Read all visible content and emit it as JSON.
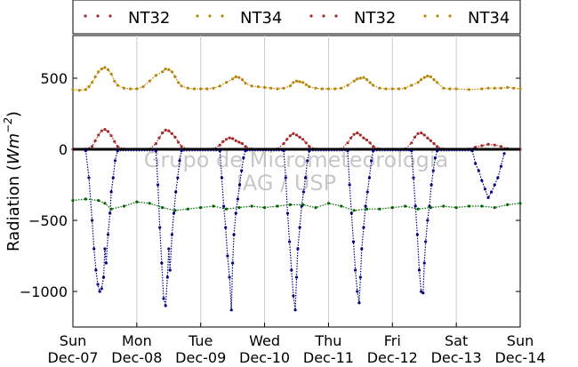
{
  "chart_data": {
    "type": "scatter",
    "ylabel_text": "Radiation (",
    "ylabel_unit_base": "Wm",
    "ylabel_unit_exp": "−2",
    "ylabel_close": ")",
    "ylim": [
      -1250,
      800
    ],
    "yticks": [
      500,
      0,
      -500,
      -1000
    ],
    "ytick_labels": [
      "500",
      "0",
      "−500",
      "−1000"
    ],
    "xlim": [
      0,
      7
    ],
    "xticks": [
      {
        "day": "Sun",
        "date": "Dec-07",
        "x": 0
      },
      {
        "day": "Mon",
        "date": "Dec-08",
        "x": 1
      },
      {
        "day": "Tue",
        "date": "Dec-09",
        "x": 2
      },
      {
        "day": "Wed",
        "date": "Dec-10",
        "x": 3
      },
      {
        "day": "Thu",
        "date": "Dec-11",
        "x": 4
      },
      {
        "day": "Fri",
        "date": "Dec-12",
        "x": 5
      },
      {
        "day": "Sat",
        "date": "Dec-13",
        "x": 6
      },
      {
        "day": "Sun",
        "date": "Dec-14",
        "x": 7
      }
    ],
    "grid": "vertical",
    "legend_position": "top",
    "legend": [
      {
        "name": "NT32",
        "color": "#a52a2a"
      },
      {
        "name": "NT34",
        "color": "#b8860b"
      },
      {
        "name": "NT32",
        "color": "#a52a2a"
      },
      {
        "name": "NT34",
        "color": "#b8860b"
      }
    ],
    "watermark": [
      "Grupo de Micrometeorologia",
      "IAG / USP"
    ],
    "series": [
      {
        "color": "#b8860b",
        "x": [
          0,
          0.1,
          0.2,
          0.25,
          0.3,
          0.35,
          0.4,
          0.45,
          0.5,
          0.55,
          0.6,
          0.65,
          0.7,
          0.8,
          0.9,
          1,
          1.1,
          1.2,
          1.3,
          1.4,
          1.45,
          1.5,
          1.55,
          1.6,
          1.65,
          1.7,
          1.8,
          1.9,
          2,
          2.1,
          2.2,
          2.3,
          2.4,
          2.5,
          2.55,
          2.6,
          2.65,
          2.7,
          2.8,
          2.9,
          3,
          3.1,
          3.2,
          3.3,
          3.4,
          3.45,
          3.5,
          3.55,
          3.6,
          3.65,
          3.7,
          3.8,
          3.9,
          4,
          4.1,
          4.2,
          4.3,
          4.4,
          4.45,
          4.5,
          4.55,
          4.6,
          4.65,
          4.7,
          4.8,
          4.9,
          5,
          5.1,
          5.2,
          5.3,
          5.4,
          5.45,
          5.5,
          5.55,
          5.6,
          5.65,
          5.7,
          5.8,
          5.9,
          6,
          6.2,
          6.4,
          6.5,
          6.6,
          6.7,
          6.8,
          6.9,
          7
        ],
        "y": [
          420,
          415,
          420,
          440,
          470,
          510,
          545,
          565,
          575,
          560,
          530,
          480,
          450,
          430,
          425,
          425,
          440,
          480,
          520,
          545,
          565,
          560,
          545,
          510,
          470,
          445,
          430,
          425,
          425,
          425,
          430,
          445,
          470,
          495,
          510,
          505,
          490,
          465,
          445,
          440,
          435,
          430,
          425,
          430,
          445,
          470,
          480,
          475,
          470,
          455,
          440,
          430,
          425,
          425,
          425,
          430,
          450,
          480,
          495,
          500,
          505,
          490,
          470,
          450,
          430,
          425,
          425,
          425,
          430,
          450,
          470,
          490,
          505,
          515,
          510,
          490,
          470,
          430,
          425,
          425,
          420,
          425,
          430,
          430,
          430,
          435,
          430,
          425
        ]
      },
      {
        "color": "#a52a2a",
        "x": [
          0,
          0.2,
          0.3,
          0.35,
          0.4,
          0.45,
          0.5,
          0.55,
          0.6,
          0.65,
          0.7,
          0.8,
          1,
          1.2,
          1.3,
          1.35,
          1.4,
          1.45,
          1.5,
          1.55,
          1.6,
          1.65,
          1.7,
          1.8,
          2,
          2.2,
          2.3,
          2.35,
          2.4,
          2.45,
          2.5,
          2.55,
          2.6,
          2.65,
          2.7,
          2.8,
          3,
          3.2,
          3.3,
          3.35,
          3.4,
          3.45,
          3.5,
          3.55,
          3.6,
          3.65,
          3.7,
          3.8,
          4,
          4.2,
          4.3,
          4.35,
          4.4,
          4.45,
          4.5,
          4.55,
          4.6,
          4.65,
          4.7,
          4.8,
          5,
          5.2,
          5.3,
          5.35,
          5.4,
          5.45,
          5.5,
          5.55,
          5.6,
          5.65,
          5.7,
          5.8,
          6,
          6.2,
          6.3,
          6.4,
          6.5,
          6.6,
          6.7,
          6.8,
          7
        ],
        "y": [
          0,
          2,
          20,
          60,
          100,
          130,
          140,
          125,
          95,
          55,
          20,
          2,
          0,
          2,
          40,
          80,
          115,
          135,
          130,
          110,
          85,
          50,
          20,
          2,
          0,
          2,
          30,
          55,
          70,
          80,
          75,
          60,
          50,
          40,
          20,
          2,
          0,
          2,
          40,
          70,
          95,
          110,
          100,
          85,
          70,
          45,
          20,
          2,
          0,
          2,
          45,
          80,
          105,
          115,
          100,
          80,
          65,
          45,
          20,
          2,
          0,
          2,
          45,
          85,
          110,
          115,
          100,
          80,
          60,
          40,
          20,
          2,
          0,
          2,
          15,
          25,
          35,
          30,
          20,
          5,
          0
        ]
      },
      {
        "color": "#000000",
        "x": [
          0,
          7
        ],
        "y": [
          0,
          0
        ]
      },
      {
        "color": "#000080",
        "x": [
          0.2,
          0.25,
          0.3,
          0.33,
          0.36,
          0.39,
          0.42,
          0.45,
          0.48,
          0.5,
          0.52,
          0.55,
          0.58,
          0.6,
          0.63,
          0.66,
          0.7,
          1.3,
          1.33,
          1.36,
          1.39,
          1.42,
          1.45,
          1.48,
          1.5,
          1.52,
          1.55,
          1.58,
          1.61,
          1.64,
          1.67,
          1.7,
          2.3,
          2.33,
          2.36,
          2.39,
          2.42,
          2.45,
          2.48,
          2.5,
          2.52,
          2.55,
          2.58,
          2.61,
          2.64,
          2.67,
          2.7,
          3.3,
          3.33,
          3.36,
          3.39,
          3.42,
          3.45,
          3.48,
          3.5,
          3.52,
          3.55,
          3.58,
          3.61,
          3.64,
          3.67,
          3.7,
          4.3,
          4.33,
          4.36,
          4.39,
          4.42,
          4.45,
          4.48,
          4.5,
          4.52,
          4.55,
          4.58,
          4.61,
          4.64,
          4.67,
          4.7,
          5.3,
          5.33,
          5.36,
          5.39,
          5.42,
          5.45,
          5.48,
          5.5,
          5.52,
          5.55,
          5.58,
          5.61,
          5.64,
          5.67,
          5.7,
          6.25,
          6.3,
          6.35,
          6.4,
          6.45,
          6.5,
          6.55,
          6.6,
          6.65,
          6.7,
          6.75
        ],
        "y": [
          -10,
          -200,
          -500,
          -700,
          -850,
          -950,
          -1000,
          -980,
          -900,
          -700,
          -800,
          -600,
          -450,
          -300,
          -200,
          -80,
          -10,
          -10,
          -250,
          -550,
          -800,
          -1050,
          -1100,
          -900,
          -700,
          -850,
          -600,
          -450,
          -300,
          -200,
          -80,
          -10,
          -10,
          -200,
          -400,
          -550,
          -750,
          -900,
          -1130,
          -800,
          -600,
          -450,
          -350,
          -250,
          -150,
          -60,
          -10,
          -10,
          -200,
          -450,
          -650,
          -850,
          -1030,
          -1130,
          -900,
          -700,
          -550,
          -400,
          -300,
          -200,
          -80,
          -10,
          -10,
          -250,
          -450,
          -650,
          -850,
          -1000,
          -1080,
          -900,
          -700,
          -550,
          -400,
          -300,
          -200,
          -80,
          -10,
          -10,
          -200,
          -400,
          -600,
          -850,
          -1000,
          -1010,
          -800,
          -650,
          -500,
          -400,
          -250,
          -150,
          -60,
          -10,
          -10,
          -100,
          -150,
          -220,
          -280,
          -340,
          -300,
          -250,
          -200,
          -120,
          -30
        ]
      },
      {
        "color": "#006400",
        "x": [
          0,
          0.2,
          0.4,
          0.5,
          0.6,
          0.8,
          1,
          1.2,
          1.4,
          1.6,
          1.8,
          2,
          2.2,
          2.4,
          2.6,
          2.8,
          3,
          3.2,
          3.4,
          3.6,
          3.8,
          4,
          4.2,
          4.4,
          4.6,
          4.8,
          5,
          5.2,
          5.4,
          5.6,
          5.8,
          6,
          6.2,
          6.4,
          6.6,
          6.8,
          7
        ],
        "y": [
          -360,
          -350,
          -360,
          -380,
          -420,
          -400,
          -370,
          -380,
          -410,
          -430,
          -420,
          -410,
          -400,
          -420,
          -410,
          -400,
          -410,
          -400,
          -390,
          -390,
          -410,
          -380,
          -400,
          -430,
          -420,
          -420,
          -410,
          -400,
          -420,
          -410,
          -400,
          -410,
          -400,
          -400,
          -410,
          -390,
          -380
        ]
      }
    ]
  }
}
